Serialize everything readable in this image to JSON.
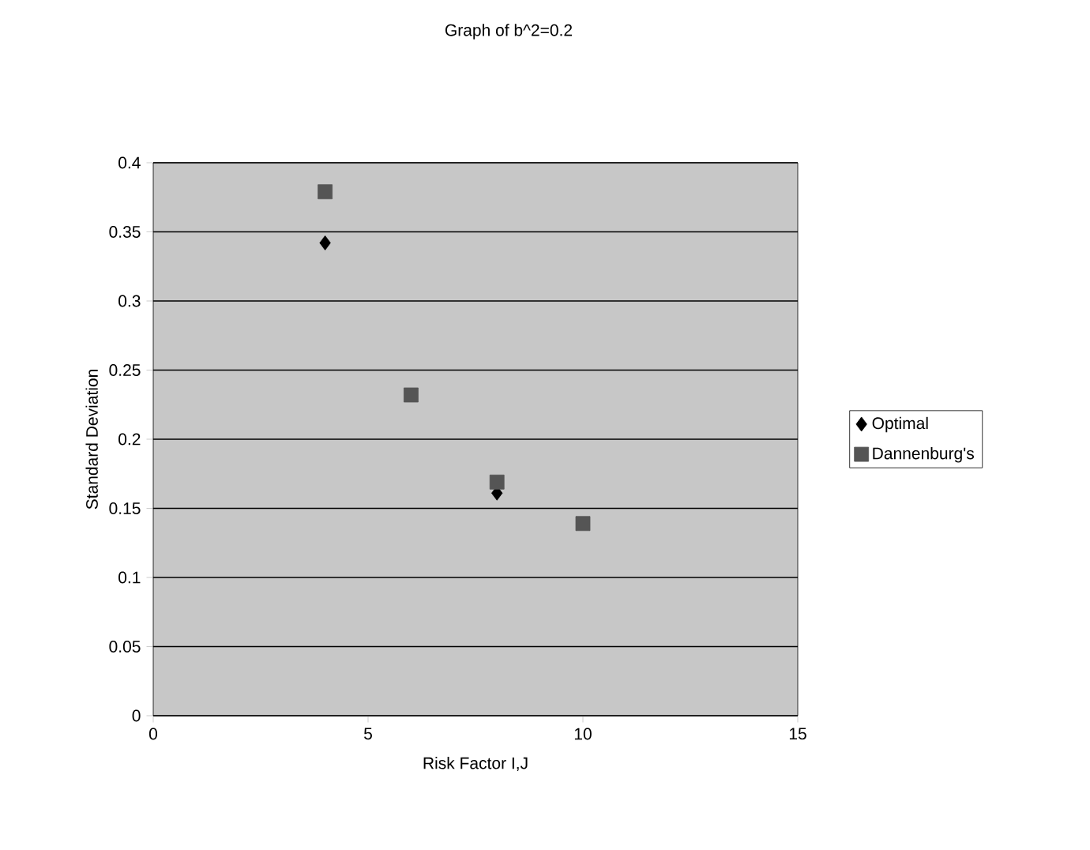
{
  "chart_data": {
    "type": "scatter",
    "title": "Graph of b^2=0.2",
    "xlabel": "Risk Factor I,J",
    "ylabel": "Standard Deviation",
    "x": [
      4,
      6,
      8,
      10
    ],
    "series": [
      {
        "name": "Optimal",
        "color": "#000000",
        "marker": "diamond",
        "values": [
          0.342,
          null,
          0.161,
          null
        ]
      },
      {
        "name": "Dannenburg's",
        "color": "#555555",
        "marker": "square",
        "values": [
          0.379,
          0.232,
          0.169,
          0.139
        ]
      }
    ],
    "xlim": [
      0,
      15
    ],
    "xticks": [
      0,
      5,
      10,
      15
    ],
    "ylim": [
      0,
      0.4
    ],
    "yticks": [
      0,
      0.05,
      0.1,
      0.15,
      0.2,
      0.25,
      0.3,
      0.35,
      0.4
    ],
    "grid": "y",
    "legend": "right"
  }
}
